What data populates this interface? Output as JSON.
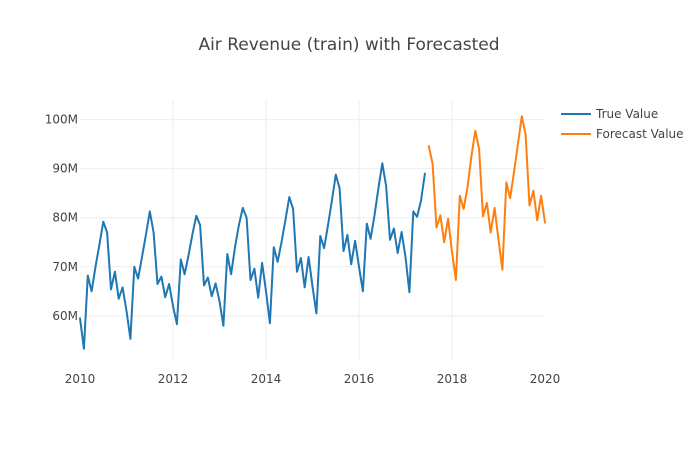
{
  "chart_data": {
    "type": "line",
    "title": "Air Revenue (train) with Forecasted",
    "xlabel": "",
    "ylabel": "",
    "xlim": [
      2010,
      2020
    ],
    "ylim": [
      51,
      104
    ],
    "grid": true,
    "legend_position": "top-right",
    "x_ticks": [
      {
        "value": 2010,
        "label": "2010"
      },
      {
        "value": 2012,
        "label": "2012"
      },
      {
        "value": 2014,
        "label": "2014"
      },
      {
        "value": 2016,
        "label": "2016"
      },
      {
        "value": 2018,
        "label": "2018"
      },
      {
        "value": 2020,
        "label": "2020"
      }
    ],
    "y_ticks": [
      {
        "value": 60,
        "label": "60M"
      },
      {
        "value": 70,
        "label": "70M"
      },
      {
        "value": 80,
        "label": "80M"
      },
      {
        "value": 90,
        "label": "90M"
      },
      {
        "value": 100,
        "label": "100M"
      }
    ],
    "series": [
      {
        "name": "True Value",
        "color": "#1f77b4",
        "start": "2010-01",
        "frequency": "monthly",
        "values": [
          59.5,
          53.3,
          68.2,
          65.0,
          70.0,
          74.5,
          79.2,
          77.0,
          65.4,
          69.0,
          63.5,
          65.8,
          61.0,
          55.3,
          70.0,
          67.6,
          72.0,
          76.5,
          81.3,
          77.0,
          66.5,
          68.0,
          63.8,
          66.5,
          62.0,
          58.3,
          71.5,
          68.5,
          72.3,
          76.6,
          80.4,
          78.5,
          66.2,
          67.8,
          64.0,
          66.6,
          63.0,
          58.0,
          72.6,
          68.5,
          74.0,
          78.5,
          82.0,
          80.0,
          67.3,
          69.6,
          63.7,
          70.8,
          65.0,
          58.5,
          74.0,
          71.0,
          75.0,
          79.5,
          84.2,
          81.8,
          69.0,
          71.8,
          65.8,
          72.0,
          66.0,
          60.5,
          76.3,
          73.8,
          78.5,
          83.5,
          88.8,
          86.0,
          73.2,
          76.5,
          70.5,
          75.3,
          70.0,
          65.0,
          78.8,
          75.7,
          80.5,
          86.0,
          91.1,
          86.5,
          75.5,
          77.8,
          72.8,
          77.1,
          72.0,
          64.8,
          81.3,
          80.2,
          83.5,
          89.0
        ]
      },
      {
        "name": "Forecast Value",
        "color": "#ff7f0e",
        "start": "2017-07",
        "frequency": "monthly",
        "values": [
          94.6,
          91.0,
          78.0,
          80.5,
          75.0,
          79.8,
          73.0,
          67.3,
          84.5,
          81.8,
          86.2,
          92.5,
          97.7,
          94.0,
          80.3,
          83.0,
          77.0,
          82.0,
          75.5,
          69.4,
          87.2,
          84.0,
          89.3,
          95.0,
          100.7,
          97.0,
          82.5,
          85.5,
          79.5,
          84.5,
          79.0
        ]
      }
    ]
  }
}
